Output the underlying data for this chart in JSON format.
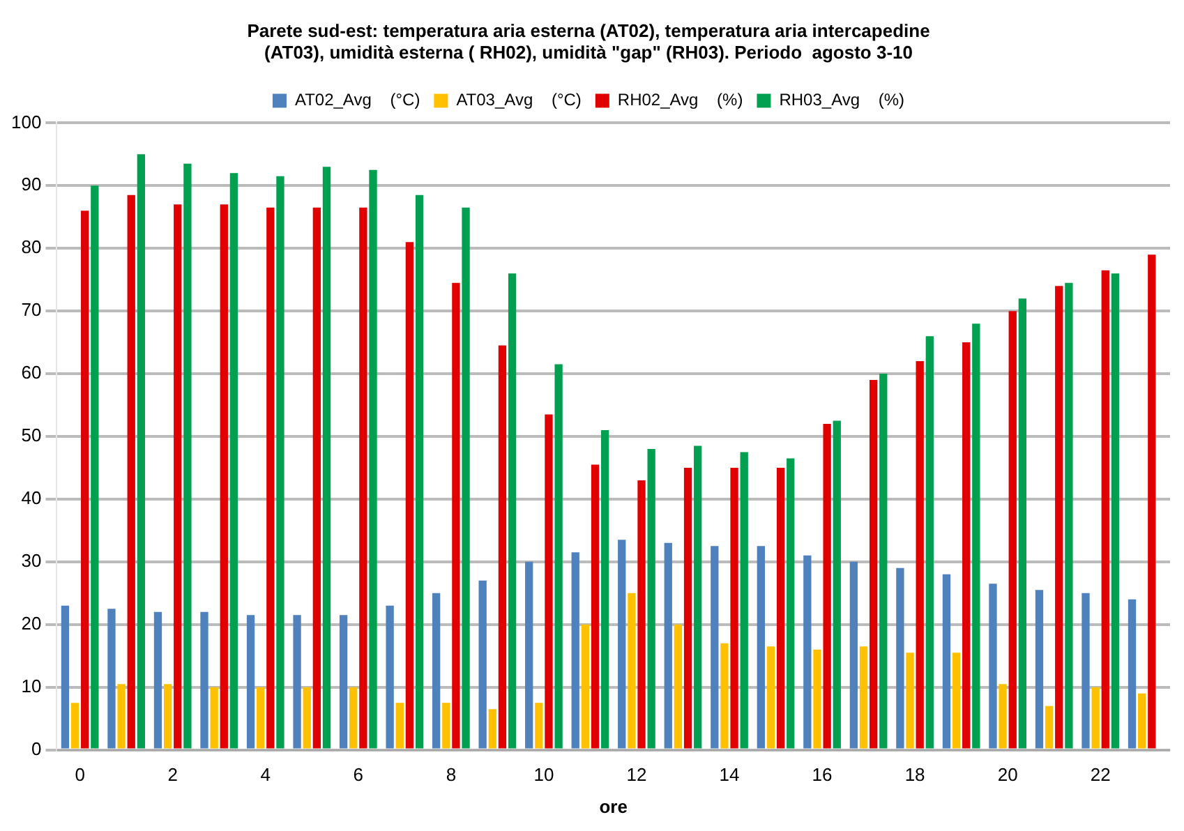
{
  "chart_data": {
    "type": "bar",
    "title": [
      "Parete sud-est: temperatura aria esterna (AT02), temperatura aria intercapedine",
      "(AT03), umidità esterna ( RH02), umidità \"gap\" (RH03). Periodo  agosto 3-10"
    ],
    "xlabel": "ore",
    "categories": [
      "0",
      null,
      "2",
      null,
      "4",
      null,
      "6",
      null,
      "8",
      null,
      "10",
      null,
      "12",
      null,
      "14",
      null,
      "16",
      null,
      "18",
      null,
      "20",
      null,
      "22",
      null
    ],
    "series": [
      {
        "name": "AT02_Avg    (°C)",
        "color": "#4f81bd",
        "values": [
          23,
          22.5,
          22,
          22,
          21.5,
          21.5,
          21.5,
          23,
          25,
          27,
          30,
          31.5,
          33.5,
          33,
          32.5,
          32.5,
          31,
          30,
          29,
          28,
          26.5,
          25.5,
          25,
          24
        ]
      },
      {
        "name": "AT03_Avg    (°C)",
        "color": "#ffc000",
        "values": [
          7.5,
          10.5,
          10.5,
          10,
          10,
          10,
          10,
          7.5,
          7.5,
          6.5,
          7.5,
          20,
          25,
          20,
          17,
          16.5,
          16,
          16.5,
          15.5,
          15.5,
          10.5,
          7,
          10,
          9
        ]
      },
      {
        "name": "RH02_Avg    (%)",
        "color": "#e00000",
        "values": [
          86,
          88.5,
          87,
          87,
          86.5,
          86.5,
          86.5,
          81,
          74.5,
          64.5,
          53.5,
          45.5,
          43,
          45,
          45,
          45,
          52,
          59,
          62,
          65,
          70,
          74,
          76.5,
          79
        ]
      },
      {
        "name": "RH03_Avg    (%)",
        "color": "#00a050",
        "values": [
          90,
          95,
          93.5,
          92,
          91.5,
          93,
          92.5,
          88.5,
          86.5,
          76,
          61.5,
          51,
          48,
          48.5,
          47.5,
          46.5,
          52.5,
          60,
          66,
          68,
          72,
          74.5,
          76,
          null
        ]
      }
    ],
    "ylim": [
      0,
      100
    ],
    "yticks": [
      0,
      10,
      20,
      30,
      40,
      50,
      60,
      70,
      80,
      90,
      100
    ],
    "grid": "y",
    "legend": "top"
  }
}
